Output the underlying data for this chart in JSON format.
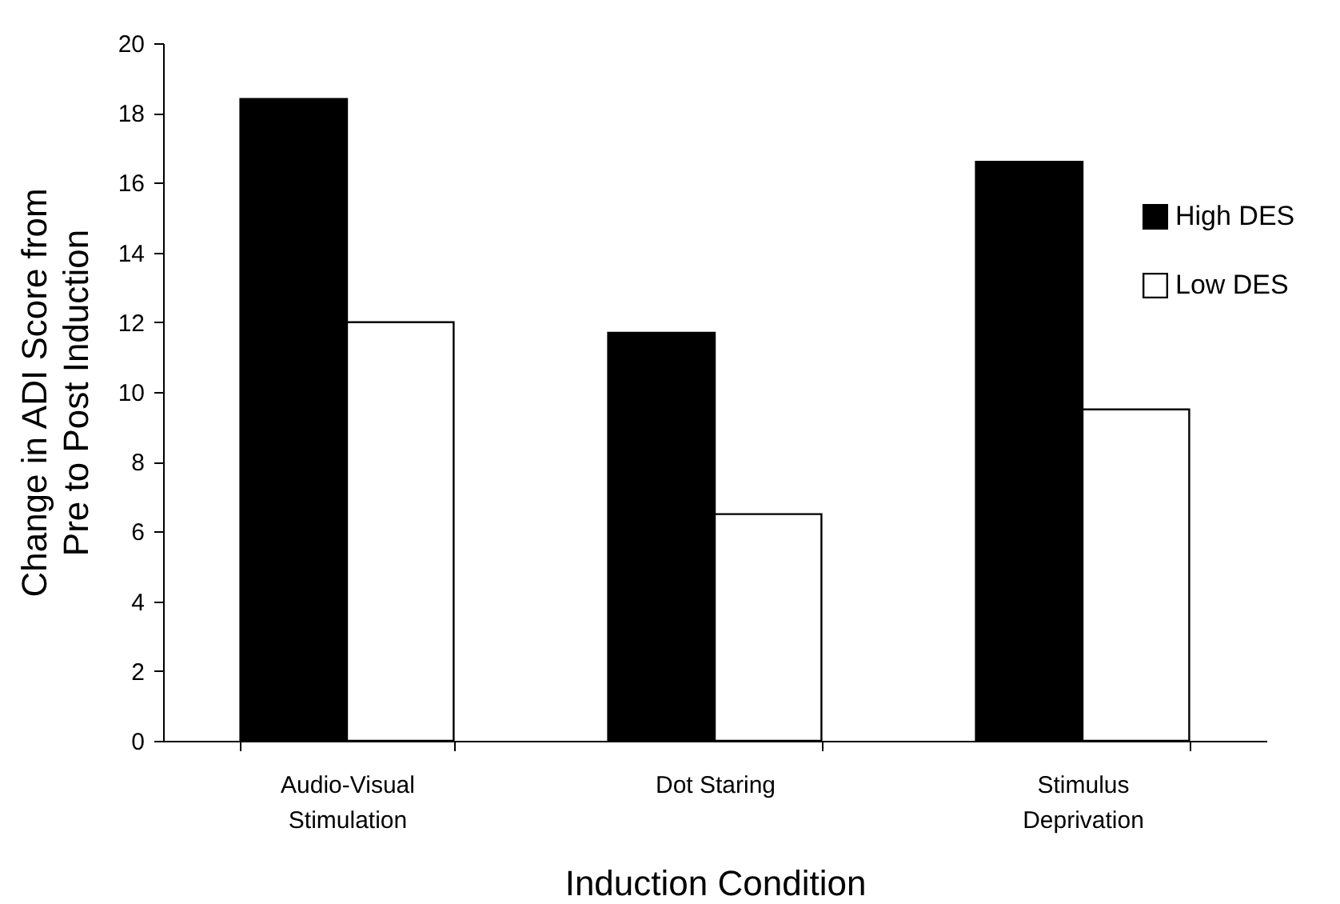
{
  "chart_data": {
    "type": "bar",
    "xlabel": "Induction Condition",
    "ylabel": "Change in ADI Score from\nPre to Post Induction",
    "categories": [
      "Audio-Visual\nStimulation",
      "Dot Staring",
      "Stimulus\nDeprivation"
    ],
    "series": [
      {
        "name": "High DES",
        "color": "#000000",
        "values": [
          18.4,
          11.7,
          16.6
        ]
      },
      {
        "name": "Low DES",
        "color": "#ffffff",
        "values": [
          12.0,
          6.5,
          9.5
        ]
      }
    ],
    "ylim": [
      0,
      20
    ],
    "yticks": [
      0,
      2,
      4,
      6,
      8,
      10,
      12,
      14,
      16,
      18,
      20
    ],
    "grid": false,
    "legend": "right"
  }
}
